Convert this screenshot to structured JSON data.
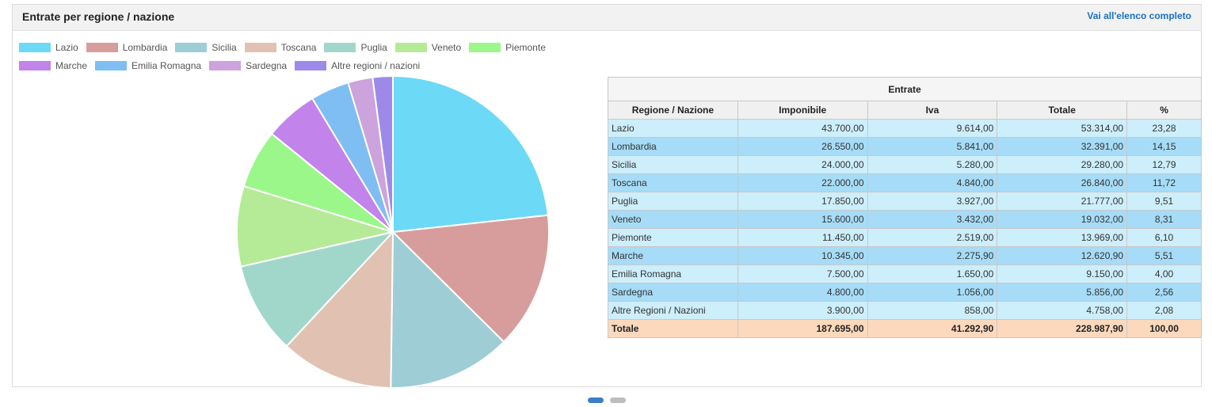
{
  "header": {
    "title": "Entrate per regione / nazione",
    "view_all": "Vai all'elenco completo"
  },
  "legend": [
    {
      "label": "Lazio",
      "color": "#6cd9f6"
    },
    {
      "label": "Lombardia",
      "color": "#d69d9c"
    },
    {
      "label": "Sicilia",
      "color": "#9ecdd5"
    },
    {
      "label": "Toscana",
      "color": "#e1c2b2"
    },
    {
      "label": "Puglia",
      "color": "#a1d7cb"
    },
    {
      "label": "Veneto",
      "color": "#b5ea97"
    },
    {
      "label": "Piemonte",
      "color": "#9cf78a"
    },
    {
      "label": "Marche",
      "color": "#c283ea"
    },
    {
      "label": "Emilia Romagna",
      "color": "#7fbef3"
    },
    {
      "label": "Sardegna",
      "color": "#cca3dd"
    },
    {
      "label": "Altre regioni / nazioni",
      "color": "#9d8ae8"
    }
  ],
  "chart_data": {
    "type": "pie",
    "categories": [
      "Lazio",
      "Lombardia",
      "Sicilia",
      "Toscana",
      "Puglia",
      "Veneto",
      "Piemonte",
      "Marche",
      "Emilia Romagna",
      "Sardegna",
      "Altre regioni / nazioni"
    ],
    "values": [
      23.28,
      14.15,
      12.79,
      11.72,
      9.51,
      8.31,
      6.1,
      5.51,
      4.0,
      2.56,
      2.08
    ],
    "legend_position": "top-left"
  },
  "table": {
    "group_header": "Entrate",
    "columns": [
      "Regione / Nazione",
      "Imponibile",
      "Iva",
      "Totale",
      "%"
    ],
    "rows": [
      [
        "Lazio",
        "43.700,00",
        "9.614,00",
        "53.314,00",
        "23,28"
      ],
      [
        "Lombardia",
        "26.550,00",
        "5.841,00",
        "32.391,00",
        "14,15"
      ],
      [
        "Sicilia",
        "24.000,00",
        "5.280,00",
        "29.280,00",
        "12,79"
      ],
      [
        "Toscana",
        "22.000,00",
        "4.840,00",
        "26.840,00",
        "11,72"
      ],
      [
        "Puglia",
        "17.850,00",
        "3.927,00",
        "21.777,00",
        "9,51"
      ],
      [
        "Veneto",
        "15.600,00",
        "3.432,00",
        "19.032,00",
        "8,31"
      ],
      [
        "Piemonte",
        "11.450,00",
        "2.519,00",
        "13.969,00",
        "6,10"
      ],
      [
        "Marche",
        "10.345,00",
        "2.275,90",
        "12.620,90",
        "5,51"
      ],
      [
        "Emilia Romagna",
        "7.500,00",
        "1.650,00",
        "9.150,00",
        "4,00"
      ],
      [
        "Sardegna",
        "4.800,00",
        "1.056,00",
        "5.856,00",
        "2,56"
      ],
      [
        "Altre Regioni / Nazioni",
        "3.900,00",
        "858,00",
        "4.758,00",
        "2,08"
      ]
    ],
    "total": [
      "Totale",
      "187.695,00",
      "41.292,90",
      "228.987,90",
      "100,00"
    ]
  },
  "pager": {
    "count": 2,
    "active": 0
  }
}
